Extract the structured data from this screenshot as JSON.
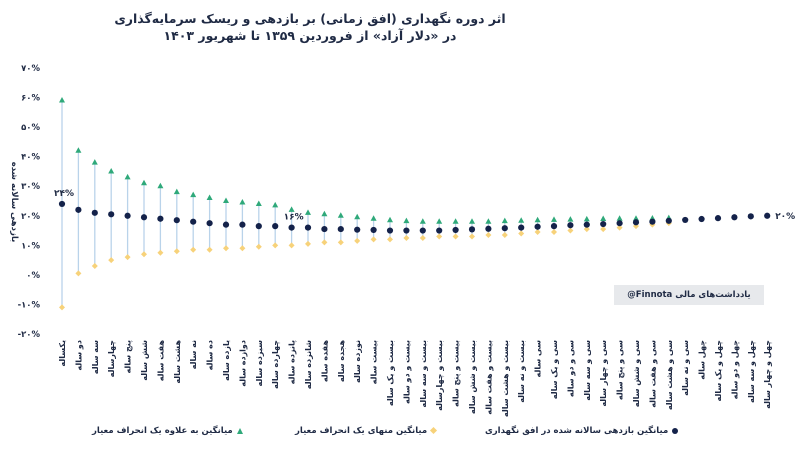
{
  "chart_data": {
    "type": "scatter",
    "title": "اثر دوره نگهداری (افق زمانی) بر بازدهی و ریسک سرمایه‌گذاری",
    "subtitle": "در «دلار آزاد» از فروردین ۱۳۵۹ تا شهریور ۱۴۰۳",
    "ylabel": "بازدهی سالانه شده",
    "ylim": [
      -20,
      70
    ],
    "yticks": [
      -20,
      -10,
      0,
      10,
      20,
      30,
      40,
      50,
      60,
      70
    ],
    "ytick_labels": [
      "-۲۰%",
      "-۱۰%",
      "۰%",
      "۱۰%",
      "۲۰%",
      "۳۰%",
      "۴۰%",
      "۵۰%",
      "۶۰%",
      "۷۰%"
    ],
    "categories": [
      "یکساله",
      "دو ساله",
      "سه ساله",
      "چهارساله",
      "پنج ساله",
      "شش ساله",
      "هفت ساله",
      "هشت ساله",
      "نه ساله",
      "ده ساله",
      "یازده ساله",
      "دوازده ساله",
      "سیزده ساله",
      "چهارده ساله",
      "پانزده ساله",
      "شانزده ساله",
      "هفده ساله",
      "هجده ساله",
      "نوزده ساله",
      "بیست ساله",
      "بیست و یک ساله",
      "بیست و دو ساله",
      "بیست و سه ساله",
      "بیست و چهارساله",
      "بیست و پنج ساله",
      "بیست و شش ساله",
      "بیست و هفت ساله",
      "بیست و هشت ساله",
      "بیست و نه ساله",
      "سی ساله",
      "سی و یک ساله",
      "سی و دو ساله",
      "سی و سه ساله",
      "سی و چهار ساله",
      "سی و پنج ساله",
      "سی و شش ساله",
      "سی و هفت ساله",
      "سی و هشت ساله",
      "سی و نه ساله",
      "چهل ساله",
      "چهل و یک ساله",
      "چهل و دو ساله",
      "چهل و سه ساله",
      "چهل و چهار ساله"
    ],
    "series": [
      {
        "name": "میانگین بازدهی سالانه شده در افق نگهداری",
        "marker": "circle",
        "color": "#14224a",
        "values": [
          24,
          22,
          21,
          20.5,
          20,
          19.5,
          19,
          18.5,
          18,
          17.5,
          17,
          17,
          16.5,
          16.5,
          16,
          16,
          15.5,
          15.5,
          15.3,
          15.2,
          15,
          15,
          15,
          15,
          15.2,
          15.4,
          15.6,
          15.8,
          16,
          16.3,
          16.5,
          16.8,
          17,
          17.2,
          17.5,
          17.8,
          18,
          18.3,
          18.6,
          18.9,
          19.2,
          19.5,
          19.8,
          20
        ]
      },
      {
        "name": "میانگین به علاوه یک انحراف معیار",
        "marker": "triangle",
        "color": "#2fa97a",
        "values": [
          59,
          42,
          38,
          35,
          33,
          31,
          30,
          28,
          27,
          26,
          25,
          24.5,
          24,
          23.5,
          22,
          21,
          20.5,
          20,
          19.5,
          19,
          18.5,
          18.2,
          18,
          18,
          18,
          18,
          18,
          18.2,
          18.3,
          18.5,
          18.6,
          18.7,
          18.8,
          18.9,
          19,
          19,
          19.1,
          19.2,
          null,
          null,
          null,
          null,
          null,
          null
        ]
      },
      {
        "name": "میانگین منهای یک انحراف معیار",
        "marker": "diamond",
        "color": "#f7d27a",
        "values": [
          -11,
          0.5,
          3,
          5,
          6,
          7,
          7.5,
          8,
          8.5,
          8.5,
          9,
          9,
          9.5,
          10,
          10,
          10.5,
          11,
          11,
          11.5,
          12,
          12,
          12.5,
          12.5,
          13,
          13,
          13,
          13.5,
          13.5,
          14,
          14.5,
          14.5,
          15,
          15.5,
          15.5,
          16,
          16.5,
          17,
          17.5,
          null,
          null,
          null,
          null,
          null,
          null
        ]
      }
    ],
    "annotations": [
      {
        "text": "۲۴%",
        "category_index": 0,
        "value": 24
      },
      {
        "text": "۱۶%",
        "category_index": 14,
        "value": 16
      },
      {
        "text": "۲۰%",
        "category_index": 43,
        "value": 20
      }
    ],
    "legend_position": "bottom",
    "grid": false
  },
  "note": "یادداشت‌های مالی Finnota@",
  "legend": {
    "mean": "میانگین بازدهی سالانه شده در افق نگهداری",
    "minus": "میانگین منهای یک انحراف معیار",
    "plus": "میانگین به علاوه یک انحراف معیار"
  },
  "colors": {
    "mean": "#14224a",
    "plus": "#2fa97a",
    "minus": "#f7d27a",
    "range": "#b9d3ea",
    "text": "#1f2a44"
  }
}
